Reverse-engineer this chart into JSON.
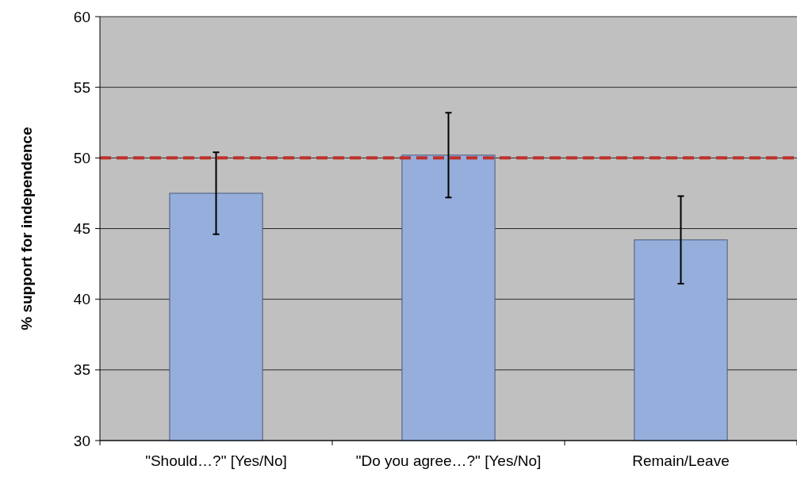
{
  "chart_data": {
    "type": "bar",
    "ylabel": "% support for independence",
    "categories": [
      "\"Should…?\" [Yes/No]",
      "\"Do you agree…?\" [Yes/No]",
      "Remain/Leave"
    ],
    "values": [
      47.5,
      50.2,
      44.2
    ],
    "color": "#95aedb",
    "errors": [
      2.9,
      3,
      3.1
    ],
    "ylim": [
      30,
      60
    ],
    "yticks": [
      30,
      35,
      40,
      45,
      50,
      55,
      60
    ],
    "grid": "y",
    "ref_lines": [
      {
        "axis": "y",
        "value": 50,
        "color": "#c0312b",
        "line_style": "dashed"
      }
    ]
  }
}
